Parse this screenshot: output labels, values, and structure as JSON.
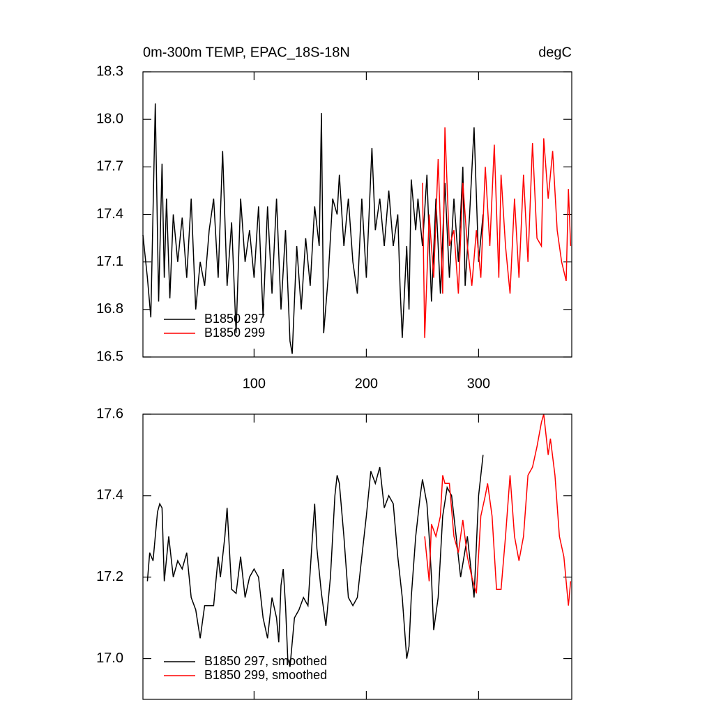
{
  "chart_data": [
    {
      "type": "line",
      "title": "0m-300m TEMP, EPAC_18S-18N",
      "units": "degC",
      "xlim": [
        1,
        383
      ],
      "xticks": [
        100,
        200,
        300
      ],
      "show_xtick_labels": true,
      "ylim": [
        16.5,
        18.3
      ],
      "yticks": [
        16.5,
        16.8,
        17.1,
        17.4,
        17.7,
        {
          "value": 18,
          "label": "18.0"
        },
        18.3
      ],
      "legend": "lower left",
      "series": [
        {
          "name": "B1850 297",
          "color": "#000000",
          "x": [
            1,
            5,
            8,
            12,
            15,
            18,
            20,
            22,
            25,
            28,
            32,
            36,
            40,
            44,
            48,
            52,
            56,
            60,
            64,
            68,
            72,
            76,
            80,
            84,
            88,
            92,
            96,
            100,
            104,
            108,
            112,
            116,
            120,
            124,
            128,
            132,
            134,
            138,
            142,
            146,
            150,
            154,
            158,
            160,
            162,
            166,
            170,
            174,
            176,
            180,
            184,
            188,
            192,
            196,
            200,
            205,
            208,
            212,
            216,
            220,
            224,
            228,
            230,
            232,
            236,
            238,
            240,
            244,
            246,
            250,
            254,
            258,
            262,
            266,
            270,
            274,
            278,
            282,
            286,
            288,
            292,
            296,
            300,
            304
          ],
          "values": [
            17.27,
            17.0,
            16.75,
            18.1,
            16.85,
            17.72,
            17.0,
            17.5,
            16.87,
            17.4,
            17.1,
            17.38,
            17.0,
            17.5,
            16.8,
            17.1,
            16.95,
            17.3,
            17.5,
            17.0,
            17.8,
            16.95,
            17.35,
            16.65,
            17.5,
            17.1,
            17.3,
            17.0,
            17.45,
            16.75,
            17.45,
            16.9,
            17.5,
            16.8,
            17.3,
            16.6,
            16.52,
            17.2,
            16.8,
            17.25,
            16.95,
            17.45,
            17.2,
            18.04,
            16.65,
            17.0,
            17.5,
            17.4,
            17.65,
            17.2,
            17.5,
            17.1,
            16.9,
            17.5,
            17.0,
            17.82,
            17.3,
            17.5,
            17.2,
            17.55,
            17.2,
            17.4,
            16.95,
            16.62,
            17.2,
            16.8,
            17.62,
            17.3,
            17.5,
            17.2,
            17.65,
            16.85,
            17.5,
            16.9,
            17.6,
            17.0,
            17.5,
            17.1,
            17.7,
            16.95,
            17.4,
            17.95,
            17.1,
            17.4
          ]
        },
        {
          "name": "B1850 299",
          "color": "#ff0000",
          "x": [
            250,
            252,
            256,
            260,
            264,
            268,
            270,
            274,
            278,
            282,
            286,
            290,
            294,
            298,
            302,
            306,
            310,
            314,
            318,
            320,
            324,
            328,
            332,
            336,
            340,
            344,
            348,
            352,
            356,
            358,
            362,
            366,
            370,
            374,
            378,
            380,
            382
          ],
          "values": [
            17.6,
            16.62,
            17.4,
            17.0,
            17.75,
            16.9,
            17.95,
            17.2,
            17.3,
            16.9,
            17.6,
            17.2,
            16.95,
            17.3,
            17.0,
            17.7,
            17.2,
            17.84,
            17.0,
            17.65,
            17.2,
            16.9,
            17.5,
            17.0,
            17.65,
            17.1,
            17.85,
            17.25,
            17.2,
            17.88,
            17.5,
            17.8,
            17.3,
            17.1,
            16.98,
            17.56,
            17.2
          ]
        }
      ]
    },
    {
      "type": "line",
      "xlim": [
        1,
        383
      ],
      "xticks": [
        100,
        200,
        300
      ],
      "show_xtick_labels": false,
      "ylim": [
        16.9,
        17.6
      ],
      "yticks": [
        {
          "value": 17,
          "label": "17.0"
        },
        17.2,
        17.4,
        17.6
      ],
      "legend": "lower left",
      "series": [
        {
          "name": "B1850 297, smoothed",
          "color": "#000000",
          "x": [
            5,
            7,
            10,
            14,
            16,
            18,
            20,
            24,
            28,
            32,
            36,
            40,
            44,
            48,
            52,
            56,
            60,
            64,
            68,
            70,
            74,
            76,
            80,
            84,
            88,
            92,
            96,
            100,
            104,
            108,
            112,
            116,
            120,
            122,
            124,
            126,
            128,
            130,
            132,
            136,
            140,
            144,
            148,
            152,
            154,
            156,
            160,
            164,
            168,
            172,
            174,
            176,
            180,
            184,
            188,
            192,
            196,
            200,
            204,
            208,
            212,
            216,
            220,
            224,
            228,
            232,
            236,
            238,
            240,
            244,
            248,
            250,
            254,
            256,
            258,
            260,
            264,
            268,
            272,
            276,
            280,
            284,
            290,
            296,
            300,
            304
          ],
          "values": [
            17.19,
            17.26,
            17.24,
            17.36,
            17.38,
            17.37,
            17.19,
            17.3,
            17.2,
            17.24,
            17.22,
            17.26,
            17.15,
            17.12,
            17.05,
            17.13,
            17.13,
            17.13,
            17.25,
            17.2,
            17.3,
            17.37,
            17.17,
            17.16,
            17.25,
            17.15,
            17.2,
            17.22,
            17.2,
            17.1,
            17.05,
            17.15,
            17.1,
            17.04,
            17.18,
            17.22,
            17.13,
            17.0,
            16.98,
            17.1,
            17.12,
            17.15,
            17.13,
            17.3,
            17.38,
            17.27,
            17.16,
            17.08,
            17.2,
            17.4,
            17.45,
            17.43,
            17.3,
            17.15,
            17.13,
            17.15,
            17.25,
            17.35,
            17.46,
            17.43,
            17.47,
            17.37,
            17.4,
            17.38,
            17.25,
            17.15,
            17.0,
            17.03,
            17.15,
            17.3,
            17.4,
            17.44,
            17.38,
            17.3,
            17.2,
            17.07,
            17.15,
            17.35,
            17.42,
            17.4,
            17.3,
            17.2,
            17.3,
            17.15,
            17.4,
            17.5
          ]
        },
        {
          "name": "B1850 299, smoothed",
          "color": "#ff0000",
          "x": [
            252,
            256,
            258,
            262,
            266,
            268,
            270,
            274,
            278,
            282,
            286,
            290,
            294,
            298,
            302,
            306,
            308,
            312,
            316,
            320,
            324,
            328,
            332,
            336,
            340,
            344,
            348,
            352,
            356,
            358,
            362,
            364,
            368,
            372,
            376,
            380,
            382
          ],
          "values": [
            17.3,
            17.19,
            17.33,
            17.3,
            17.35,
            17.45,
            17.43,
            17.43,
            17.3,
            17.26,
            17.34,
            17.25,
            17.2,
            17.16,
            17.35,
            17.4,
            17.43,
            17.35,
            17.17,
            17.17,
            17.3,
            17.45,
            17.3,
            17.24,
            17.3,
            17.45,
            17.47,
            17.52,
            17.58,
            17.6,
            17.5,
            17.54,
            17.45,
            17.3,
            17.25,
            17.13,
            17.19
          ]
        }
      ]
    }
  ]
}
